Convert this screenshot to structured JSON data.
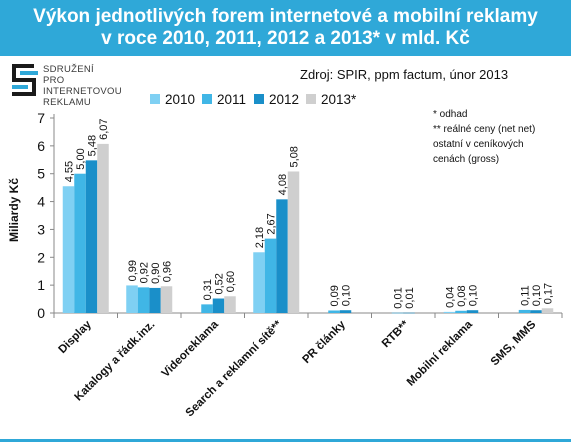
{
  "header": {
    "title_line1": "Výkon jednotlivých forem internetové a mobilní reklamy",
    "title_line2": "v roce 2010, 2011, 2012 a 2013* v mld. Kč"
  },
  "logo": {
    "line1": "SDRUŽENÍ",
    "line2": "PRO INTERNETOVOU",
    "line3": "REKLAMU"
  },
  "source": "Zdroj: SPIR, ppm factum, únor 2013",
  "notes": {
    "line1": "* odhad",
    "line2": "** reálné ceny (net net)",
    "line3": "ostatní v ceníkových",
    "line4": "cenách (gross)"
  },
  "colors": {
    "title_bg": "#2fa8d8",
    "s2010": "#7fd0f3",
    "s2011": "#40b6e6",
    "s2012": "#1a8fc9",
    "s2013": "#cfcfcf"
  },
  "chart_data": {
    "type": "bar",
    "ylabel": "Miliardy Kč",
    "ylim": [
      0,
      7
    ],
    "yticks": [
      "0",
      "1",
      "2",
      "3",
      "4",
      "5",
      "6",
      "7"
    ],
    "legend_position": "top",
    "categories": [
      "Display",
      "Katalogy a řádk.inz.",
      "Videoreklama",
      "Search a reklamní sítě**",
      "PR články",
      "RTB**",
      "Mobilní reklama",
      "SMS, MMS"
    ],
    "series": [
      {
        "name": "2010",
        "values": [
          4.55,
          0.99,
          null,
          2.18,
          null,
          null,
          0.04,
          null
        ]
      },
      {
        "name": "2011",
        "values": [
          5.0,
          0.92,
          0.31,
          2.67,
          0.09,
          0.01,
          0.08,
          0.11
        ]
      },
      {
        "name": "2012",
        "values": [
          5.48,
          0.9,
          0.52,
          4.08,
          0.1,
          0.01,
          0.1,
          0.1
        ]
      },
      {
        "name": "2013*",
        "values": [
          6.07,
          0.96,
          0.6,
          5.08,
          null,
          null,
          null,
          0.17
        ]
      }
    ],
    "data_labels": [
      [
        "4,55",
        "0,99",
        "",
        "2,18",
        "",
        "",
        "0,04",
        ""
      ],
      [
        "5,00",
        "0,92",
        "0,31",
        "2,67",
        "0,09",
        "0,01",
        "0,08",
        "0,11"
      ],
      [
        "5,48",
        "0,90",
        "0,52",
        "4,08",
        "0,10",
        "0,01",
        "0,10",
        "0,10"
      ],
      [
        "6,07",
        "0,96",
        "0,60",
        "5,08",
        "",
        "",
        "",
        "0,17"
      ]
    ]
  }
}
